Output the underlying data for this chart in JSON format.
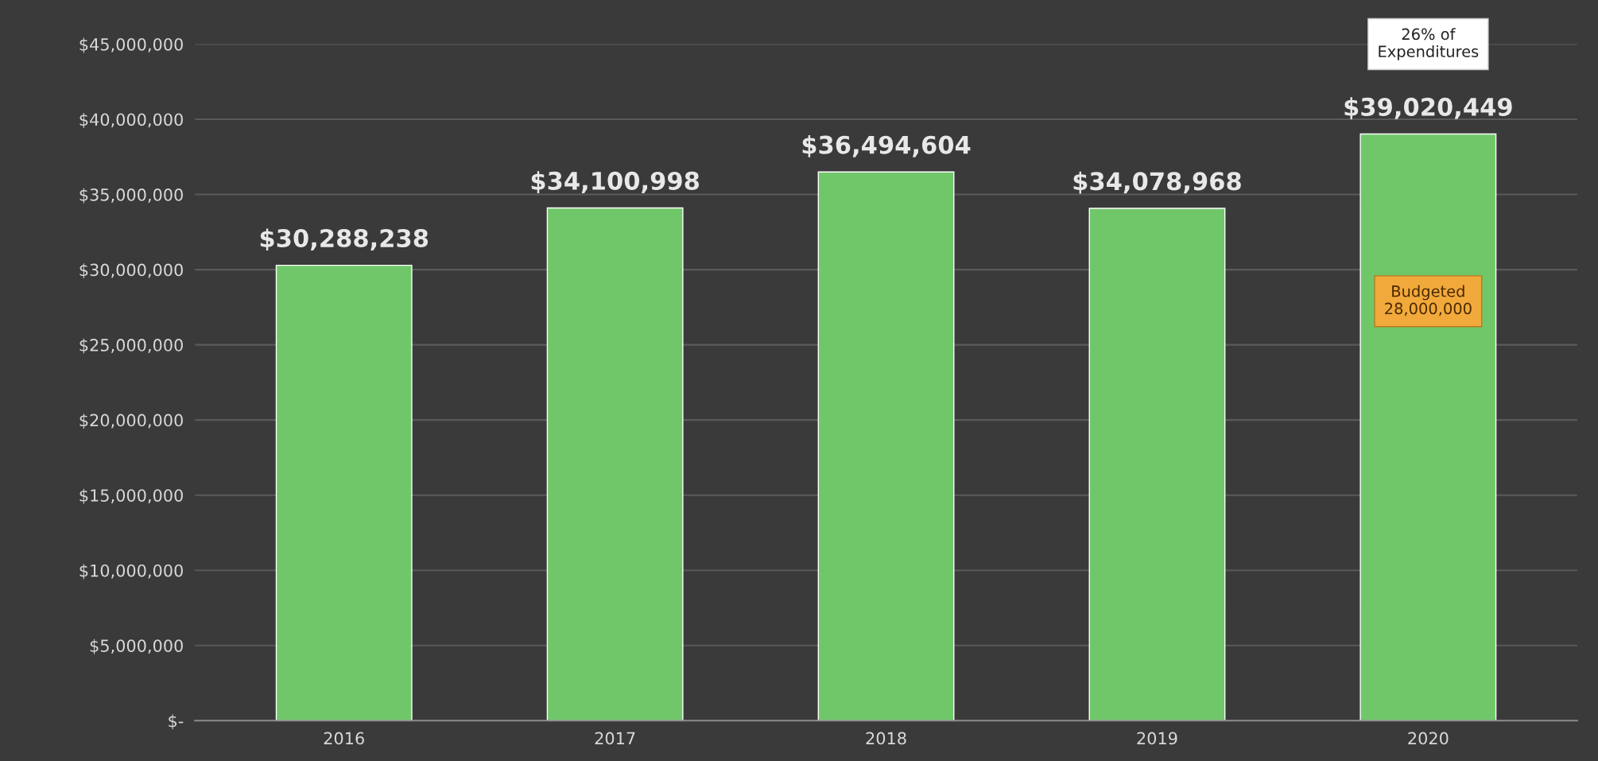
{
  "chart_data": {
    "type": "bar",
    "categories": [
      "2016",
      "2017",
      "2018",
      "2019",
      "2020"
    ],
    "values": [
      30288238,
      34100998,
      36494604,
      34078968,
      39020449
    ],
    "value_labels": [
      "$30,288,238",
      "$34,100,998",
      "$36,494,604",
      "$34,078,968",
      "$39,020,449"
    ],
    "color": "#70c76a",
    "ylim": [
      0,
      45000000
    ],
    "yticks": [
      {
        "value": 0,
        "label": "$-"
      },
      {
        "value": 5000000,
        "label": "$5,000,000"
      },
      {
        "value": 10000000,
        "label": "$10,000,000"
      },
      {
        "value": 15000000,
        "label": "$15,000,000"
      },
      {
        "value": 20000000,
        "label": "$20,000,000"
      },
      {
        "value": 25000000,
        "label": "$25,000,000"
      },
      {
        "value": 30000000,
        "label": "$30,000,000"
      },
      {
        "value": 35000000,
        "label": "$35,000,000"
      },
      {
        "value": 40000000,
        "label": "$40,000,000"
      },
      {
        "value": 45000000,
        "label": "$45,000,000"
      }
    ],
    "grid": "y",
    "annotations": [
      "26% of\nExpenditures",
      "Budgeted\n28,000,000"
    ]
  }
}
